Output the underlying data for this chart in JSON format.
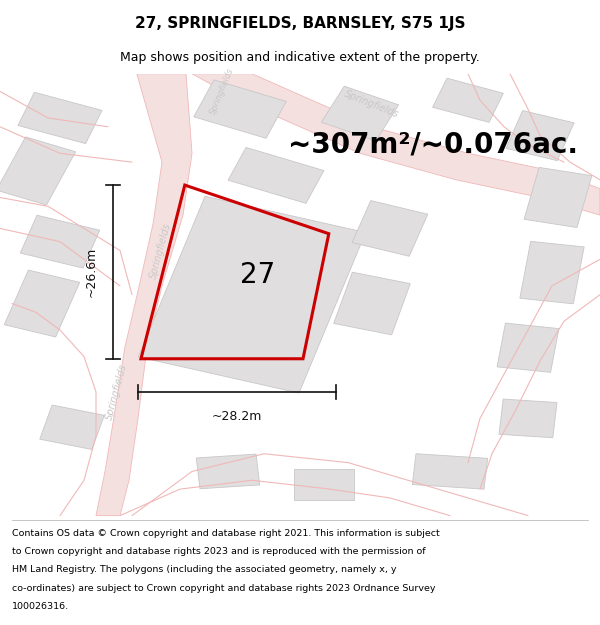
{
  "title": "27, SPRINGFIELDS, BARNSLEY, S75 1JS",
  "subtitle": "Map shows position and indicative extent of the property.",
  "area_text": "~307m²/~0.076ac.",
  "width_label": "~28.2m",
  "height_label": "~26.6m",
  "property_number": "27",
  "footer_lines": [
    "Contains OS data © Crown copyright and database right 2021. This information is subject",
    "to Crown copyright and database rights 2023 and is reproduced with the permission of",
    "HM Land Registry. The polygons (including the associated geometry, namely x, y",
    "co-ordinates) are subject to Crown copyright and database rights 2023 Ordnance Survey",
    "100026316."
  ],
  "map_bg": "#f7f6f5",
  "road_color": "#f0b8b8",
  "building_face": "#e0dede",
  "building_edge": "#c8c8c8",
  "property_color": "#cc0000",
  "dim_color": "#111111",
  "road_label_color": "#c8c8c8",
  "title_fontsize": 11,
  "subtitle_fontsize": 9,
  "area_fontsize": 20,
  "label_fontsize": 9,
  "number_fontsize": 20,
  "footer_fontsize": 6.8
}
